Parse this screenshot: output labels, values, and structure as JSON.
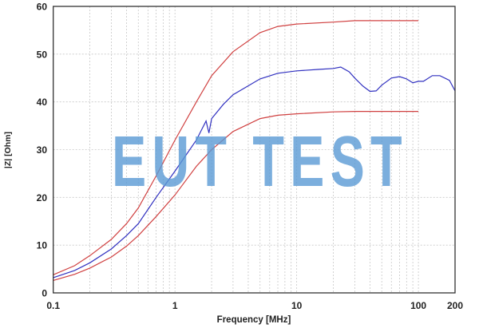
{
  "chart_data": {
    "type": "line",
    "title": "",
    "xlabel": "Frequency [MHz]",
    "ylabel": "|Z| [Ohm]",
    "xscale": "log",
    "xlim": [
      0.1,
      200
    ],
    "ylim": [
      0,
      60
    ],
    "grid": true,
    "xticks": [
      0.1,
      1,
      10,
      100,
      200
    ],
    "xtick_labels": [
      "0.1",
      "1",
      "10",
      "100",
      "200"
    ],
    "yticks": [
      0,
      10,
      20,
      30,
      40,
      50,
      60
    ],
    "ytick_labels": [
      "0",
      "10",
      "20",
      "30",
      "40",
      "50",
      "60"
    ],
    "watermark": "EUT TEST",
    "series": [
      {
        "color": "#d04040",
        "x": [
          0.1,
          0.15,
          0.2,
          0.3,
          0.4,
          0.5,
          0.7,
          1,
          1.5,
          2,
          3,
          5,
          7,
          10,
          20,
          30,
          50,
          100
        ],
        "y": [
          3.8,
          5.7,
          7.8,
          11.2,
          14.5,
          17.8,
          24.5,
          32,
          40,
          45.5,
          50.5,
          54.5,
          55.8,
          56.3,
          56.7,
          57,
          57,
          57
        ]
      },
      {
        "color": "#3030c0",
        "x": [
          0.1,
          0.15,
          0.2,
          0.3,
          0.4,
          0.5,
          0.7,
          1,
          1.5,
          1.8,
          1.9,
          2,
          2.5,
          3,
          5,
          7,
          10,
          15,
          20,
          23,
          27,
          30,
          35,
          40,
          45,
          50,
          60,
          70,
          80,
          90,
          100,
          110,
          130,
          150,
          180,
          200
        ],
        "y": [
          3.2,
          4.7,
          6.3,
          9.2,
          12,
          14.5,
          20,
          25.5,
          32,
          36,
          33.5,
          36.5,
          39.5,
          41.5,
          44.8,
          46,
          46.5,
          46.8,
          47,
          47.3,
          46.3,
          45,
          43.3,
          42.2,
          42.3,
          43.5,
          45,
          45.3,
          44.8,
          44,
          44.3,
          44.3,
          45.5,
          45.5,
          44.5,
          42.3
        ]
      },
      {
        "color": "#d04040",
        "x": [
          0.1,
          0.15,
          0.2,
          0.3,
          0.4,
          0.5,
          0.7,
          1,
          1.5,
          2,
          3,
          5,
          7,
          10,
          20,
          30,
          50,
          100
        ],
        "y": [
          2.6,
          3.9,
          5.2,
          7.5,
          9.8,
          12,
          16,
          20.5,
          26.5,
          30,
          33.8,
          36.5,
          37.2,
          37.5,
          37.9,
          38,
          38,
          38
        ]
      }
    ]
  }
}
